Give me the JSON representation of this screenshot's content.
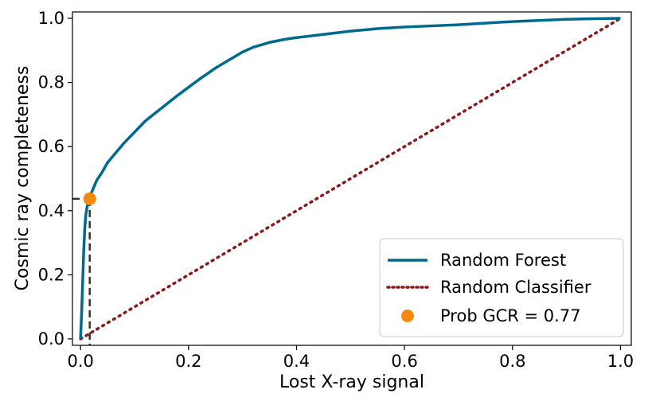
{
  "chart_data": {
    "type": "line",
    "title": "",
    "xlabel": "Lost X-ray signal",
    "ylabel": "Cosmic ray completeness",
    "xlim": [
      -0.015,
      1.02
    ],
    "ylim": [
      -0.02,
      1.02
    ],
    "xticks": [
      0.0,
      0.2,
      0.4,
      0.6,
      0.8,
      1.0
    ],
    "yticks": [
      0.0,
      0.2,
      0.4,
      0.6,
      0.8,
      1.0
    ],
    "xtick_labels": [
      "0.0",
      "0.2",
      "0.4",
      "0.6",
      "0.8",
      "1.0"
    ],
    "ytick_labels": [
      "0.0",
      "0.2",
      "0.4",
      "0.6",
      "0.8",
      "1.0"
    ],
    "grid": false,
    "legend_position": "lower-right",
    "series": [
      {
        "name": "Random Forest",
        "style": "solid",
        "color": "#006a8e",
        "x": [
          0.0,
          0.002,
          0.004,
          0.006,
          0.008,
          0.01,
          0.013,
          0.016,
          0.02,
          0.025,
          0.03,
          0.04,
          0.05,
          0.06,
          0.08,
          0.1,
          0.12,
          0.15,
          0.18,
          0.2,
          0.22,
          0.25,
          0.28,
          0.3,
          0.32,
          0.35,
          0.38,
          0.4,
          0.45,
          0.5,
          0.55,
          0.6,
          0.7,
          0.8,
          0.9,
          0.95,
          1.0
        ],
        "y": [
          0.0,
          0.08,
          0.18,
          0.28,
          0.35,
          0.39,
          0.42,
          0.435,
          0.455,
          0.475,
          0.495,
          0.52,
          0.55,
          0.57,
          0.61,
          0.645,
          0.68,
          0.72,
          0.76,
          0.785,
          0.81,
          0.845,
          0.875,
          0.895,
          0.91,
          0.925,
          0.935,
          0.94,
          0.95,
          0.96,
          0.968,
          0.973,
          0.98,
          0.99,
          0.997,
          0.999,
          1.0
        ]
      },
      {
        "name": "Random Classifier",
        "style": "dotted",
        "color": "#8b1a1a",
        "x": [
          0.0,
          1.0
        ],
        "y": [
          0.0,
          1.0
        ]
      }
    ],
    "markers": [
      {
        "name": "Prob GCR = 0.77",
        "color": "#f28a0e",
        "x": 0.017,
        "y": 0.437
      }
    ],
    "reference_lines": {
      "color": "#333333",
      "style": "dashed",
      "x": 0.017,
      "y": 0.437
    }
  }
}
